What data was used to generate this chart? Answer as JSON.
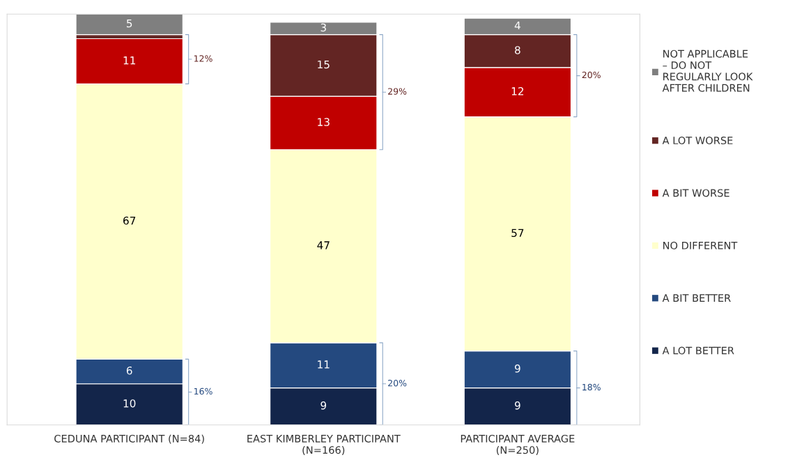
{
  "chart_data": {
    "type": "bar",
    "stacked": true,
    "ylim": [
      0,
      100
    ],
    "tick_labels": "x",
    "legend": "right",
    "grid": false,
    "categories": [
      "CEDUNA PARTICIPANT (N=84)",
      "EAST KIMBERLEY PARTICIPANT\n(N=166)",
      "PARTICIPANT AVERAGE\n(N=250)"
    ],
    "series": [
      {
        "name": "A LOT BETTER",
        "color": "#13254a",
        "values": [
          10,
          9,
          9
        ],
        "value_labels": [
          "10",
          "9",
          "9"
        ]
      },
      {
        "name": "A BIT BETTER",
        "color": "#24497f",
        "values": [
          6,
          11,
          9
        ],
        "value_labels": [
          "6",
          "11",
          "9"
        ]
      },
      {
        "name": "NO DIFFERENT",
        "color": "#ffffcc",
        "values": [
          67,
          47,
          57
        ],
        "value_labels": [
          "67",
          "47",
          "57"
        ]
      },
      {
        "name": "A BIT WORSE",
        "color": "#c00000",
        "values": [
          11,
          13,
          12
        ],
        "value_labels": [
          "11",
          "13",
          "12"
        ]
      },
      {
        "name": "A LOT WORSE",
        "color": "#632523",
        "values": [
          1,
          15,
          8
        ],
        "value_labels": [
          null,
          "15",
          "8"
        ]
      },
      {
        "name": "NOT APPLICABLE\n– DO NOT\nREGULARLY LOOK\nAFTER CHILDREN",
        "color": "#7f7f7f",
        "values": [
          5,
          3,
          4
        ],
        "value_labels": [
          "5",
          "3",
          "4"
        ]
      }
    ],
    "annotations": [
      "16%",
      "12%",
      "20%",
      "29%",
      "18%",
      "20%"
    ]
  }
}
